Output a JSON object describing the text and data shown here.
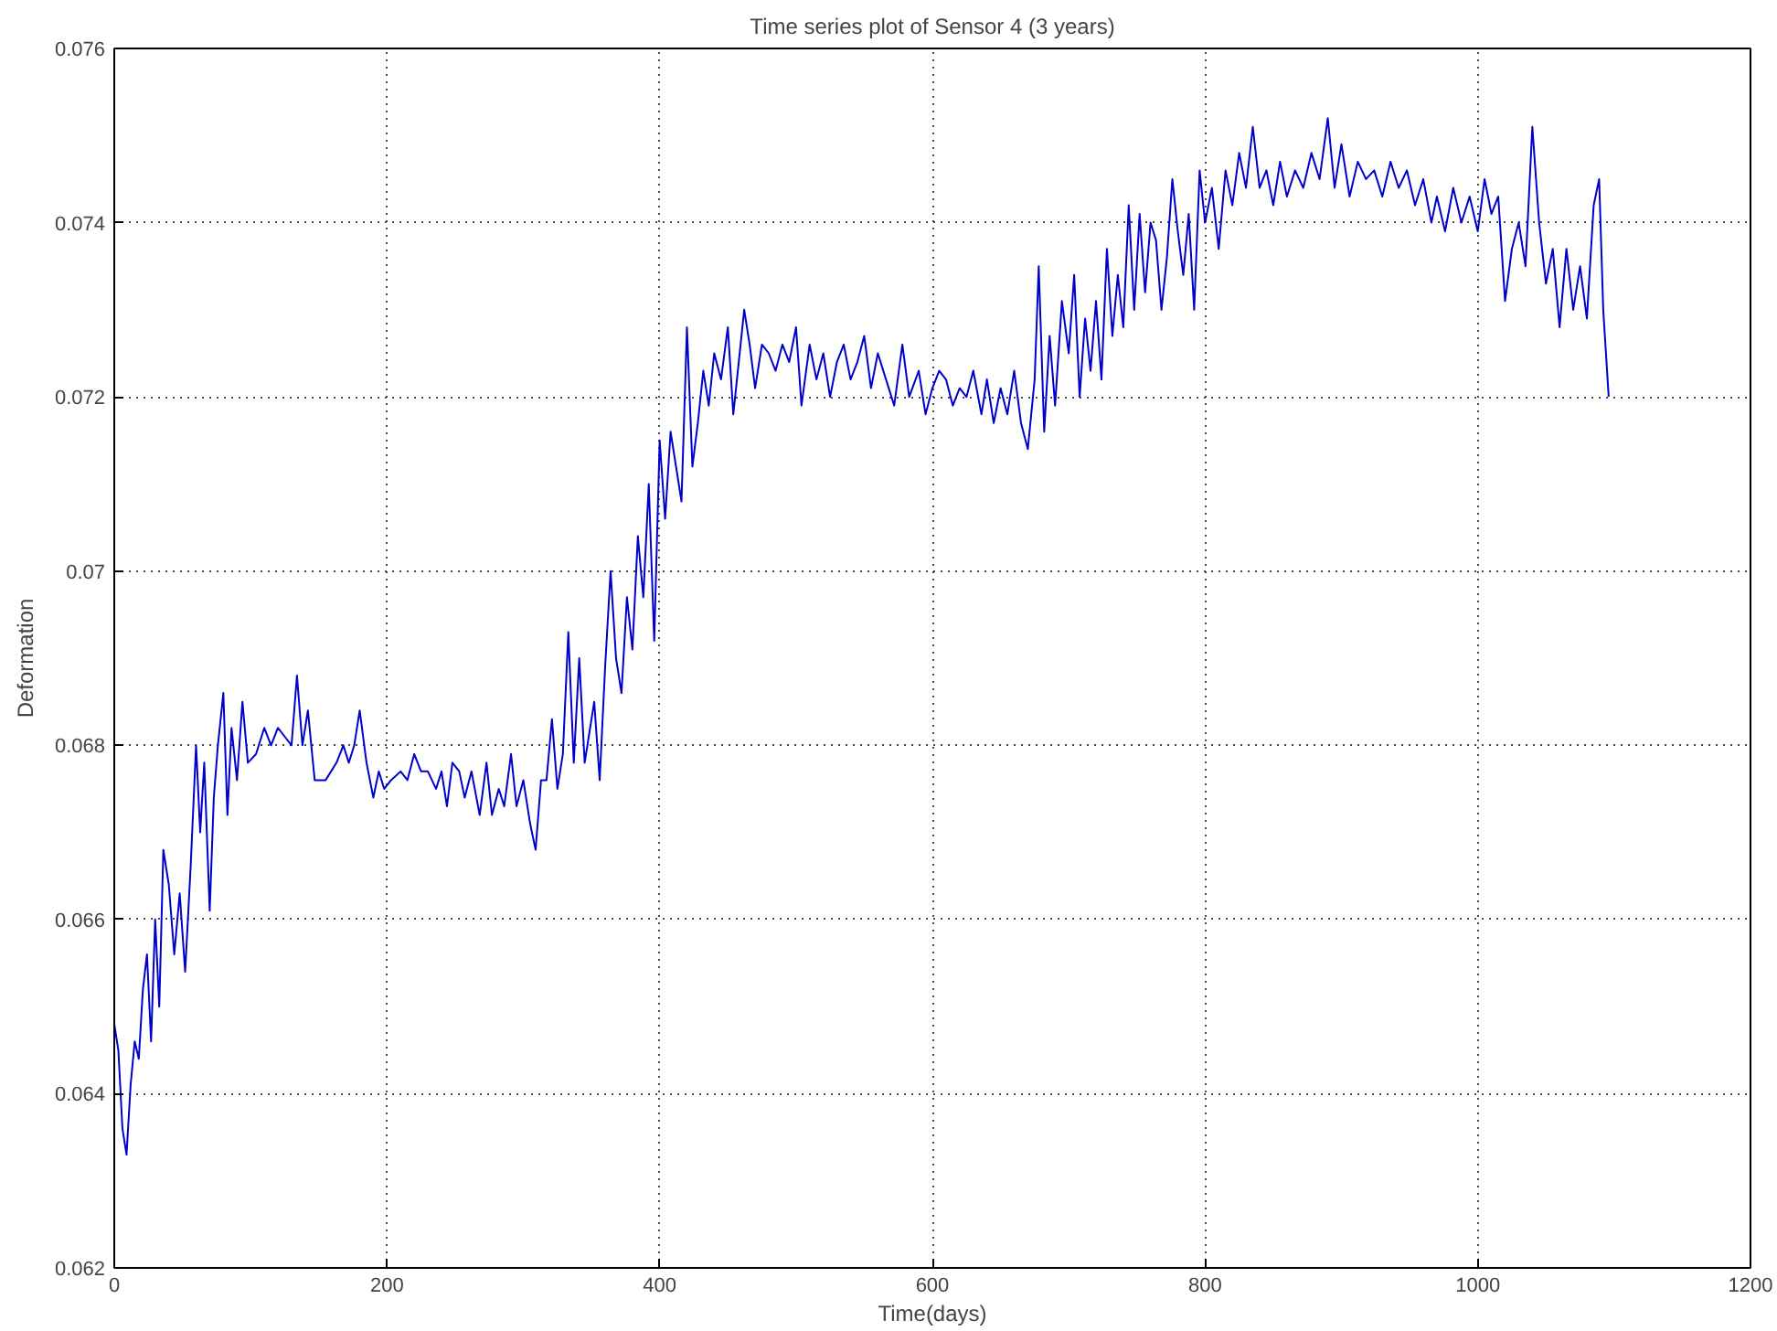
{
  "chart_data": {
    "type": "line",
    "title": "Time series plot of Sensor 4 (3 years)",
    "xlabel": "Time(days)",
    "ylabel": "Deformation",
    "xlim": [
      0,
      1200
    ],
    "xticks": [
      0,
      200,
      400,
      600,
      800,
      1000,
      1200
    ],
    "ylim": [
      0.062,
      0.076
    ],
    "yticks": [
      0.062,
      0.064,
      0.066,
      0.068,
      {
        "value": 0.07,
        "label": "0.07"
      },
      0.072,
      0.074,
      0.076
    ],
    "grid": true,
    "marker": "none",
    "line_style": "solid",
    "series": [
      {
        "color": "#0000cc",
        "x": [
          0,
          3,
          6,
          9,
          12,
          15,
          18,
          21,
          24,
          27,
          30,
          33,
          36,
          40,
          44,
          48,
          52,
          56,
          60,
          63,
          66,
          70,
          73,
          76,
          80,
          83,
          86,
          90,
          94,
          98,
          104,
          110,
          115,
          120,
          125,
          130,
          134,
          138,
          142,
          147,
          155,
          163,
          168,
          172,
          176,
          180,
          185,
          190,
          194,
          198,
          203,
          210,
          215,
          220,
          225,
          230,
          236,
          240,
          244,
          248,
          253,
          257,
          262,
          268,
          273,
          277,
          282,
          286,
          291,
          295,
          300,
          305,
          309,
          313,
          317,
          321,
          325,
          329,
          333,
          337,
          341,
          345,
          348,
          352,
          356,
          360,
          364,
          368,
          372,
          376,
          380,
          384,
          388,
          392,
          396,
          400,
          404,
          408,
          412,
          416,
          420,
          424,
          428,
          432,
          436,
          440,
          445,
          450,
          454,
          458,
          462,
          466,
          470,
          475,
          480,
          485,
          490,
          495,
          500,
          504,
          510,
          515,
          520,
          525,
          530,
          535,
          540,
          545,
          550,
          555,
          560,
          566,
          572,
          578,
          583,
          590,
          595,
          600,
          605,
          610,
          615,
          620,
          625,
          630,
          636,
          640,
          645,
          650,
          655,
          660,
          665,
          670,
          675,
          678,
          682,
          686,
          690,
          695,
          700,
          704,
          708,
          712,
          716,
          720,
          724,
          728,
          732,
          736,
          740,
          744,
          748,
          752,
          756,
          760,
          764,
          768,
          772,
          776,
          780,
          784,
          788,
          792,
          796,
          800,
          805,
          810,
          815,
          820,
          825,
          830,
          835,
          840,
          845,
          850,
          855,
          860,
          866,
          872,
          878,
          884,
          890,
          895,
          900,
          906,
          912,
          918,
          924,
          930,
          936,
          942,
          948,
          954,
          960,
          966,
          970,
          976,
          982,
          988,
          994,
          1000,
          1005,
          1010,
          1015,
          1020,
          1025,
          1030,
          1035,
          1040,
          1045,
          1050,
          1055,
          1060,
          1065,
          1070,
          1075,
          1080,
          1085,
          1089,
          1092,
          1096
        ],
        "values": [
          0.0648,
          0.0645,
          0.0636,
          0.0633,
          0.0641,
          0.0646,
          0.0644,
          0.0652,
          0.0656,
          0.0646,
          0.066,
          0.065,
          0.0668,
          0.0664,
          0.0656,
          0.0663,
          0.0654,
          0.0666,
          0.068,
          0.067,
          0.0678,
          0.0661,
          0.0674,
          0.068,
          0.0686,
          0.0672,
          0.0682,
          0.0676,
          0.0685,
          0.0678,
          0.0679,
          0.0682,
          0.068,
          0.0682,
          0.0681,
          0.068,
          0.0688,
          0.068,
          0.0684,
          0.0676,
          0.0676,
          0.0678,
          0.068,
          0.0678,
          0.068,
          0.0684,
          0.0678,
          0.0674,
          0.0677,
          0.0675,
          0.0676,
          0.0677,
          0.0676,
          0.0679,
          0.0677,
          0.0677,
          0.0675,
          0.0677,
          0.0673,
          0.0678,
          0.0677,
          0.0674,
          0.0677,
          0.0672,
          0.0678,
          0.0672,
          0.0675,
          0.0673,
          0.0679,
          0.0673,
          0.0676,
          0.0671,
          0.0668,
          0.0676,
          0.0676,
          0.0683,
          0.0675,
          0.0679,
          0.0693,
          0.0678,
          0.069,
          0.0678,
          0.0681,
          0.0685,
          0.0676,
          0.0689,
          0.07,
          0.069,
          0.0686,
          0.0697,
          0.0691,
          0.0704,
          0.0697,
          0.071,
          0.0692,
          0.0715,
          0.0706,
          0.0716,
          0.0712,
          0.0708,
          0.0728,
          0.0712,
          0.0717,
          0.0723,
          0.0719,
          0.0725,
          0.0722,
          0.0728,
          0.0718,
          0.0724,
          0.073,
          0.0726,
          0.0721,
          0.0726,
          0.0725,
          0.0723,
          0.0726,
          0.0724,
          0.0728,
          0.0719,
          0.0726,
          0.0722,
          0.0725,
          0.072,
          0.0724,
          0.0726,
          0.0722,
          0.0724,
          0.0727,
          0.0721,
          0.0725,
          0.0722,
          0.0719,
          0.0726,
          0.072,
          0.0723,
          0.0718,
          0.0721,
          0.0723,
          0.0722,
          0.0719,
          0.0721,
          0.072,
          0.0723,
          0.0718,
          0.0722,
          0.0717,
          0.0721,
          0.0718,
          0.0723,
          0.0717,
          0.0714,
          0.0722,
          0.0735,
          0.0716,
          0.0727,
          0.0719,
          0.0731,
          0.0725,
          0.0734,
          0.072,
          0.0729,
          0.0723,
          0.0731,
          0.0722,
          0.0737,
          0.0727,
          0.0734,
          0.0728,
          0.0742,
          0.073,
          0.0741,
          0.0732,
          0.074,
          0.0738,
          0.073,
          0.0736,
          0.0745,
          0.0739,
          0.0734,
          0.0741,
          0.073,
          0.0746,
          0.074,
          0.0744,
          0.0737,
          0.0746,
          0.0742,
          0.0748,
          0.0744,
          0.0751,
          0.0744,
          0.0746,
          0.0742,
          0.0747,
          0.0743,
          0.0746,
          0.0744,
          0.0748,
          0.0745,
          0.0752,
          0.0744,
          0.0749,
          0.0743,
          0.0747,
          0.0745,
          0.0746,
          0.0743,
          0.0747,
          0.0744,
          0.0746,
          0.0742,
          0.0745,
          0.074,
          0.0743,
          0.0739,
          0.0744,
          0.074,
          0.0743,
          0.0739,
          0.0745,
          0.0741,
          0.0743,
          0.0731,
          0.0737,
          0.074,
          0.0735,
          0.0751,
          0.074,
          0.0733,
          0.0737,
          0.0728,
          0.0737,
          0.073,
          0.0735,
          0.0729,
          0.0742,
          0.0745,
          0.073,
          0.072
        ]
      }
    ]
  }
}
